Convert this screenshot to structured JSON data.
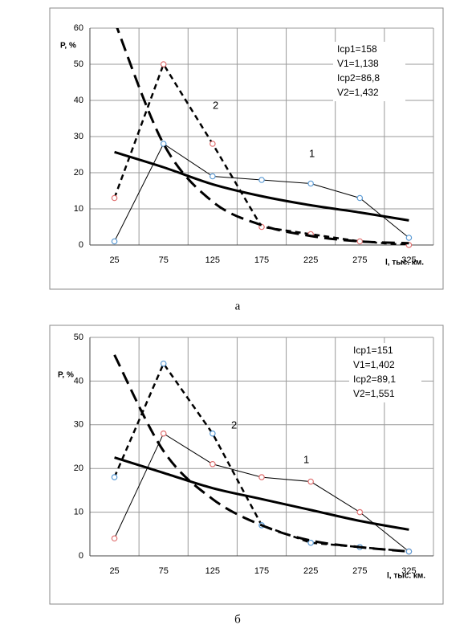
{
  "chart_data": [
    {
      "type": "line",
      "caption": "а",
      "ylabel": "P, %",
      "xlabel": "l, тыс. км.",
      "xlim": [
        0,
        350
      ],
      "xticks": [
        25,
        75,
        125,
        175,
        225,
        275,
        325
      ],
      "ylim": [
        0,
        60
      ],
      "yticks": [
        0,
        10,
        20,
        30,
        40,
        50,
        60
      ],
      "grid": true,
      "x": [
        25,
        75,
        125,
        175,
        225,
        275,
        325
      ],
      "series": [
        {
          "color": "#000000",
          "line_style": "solid",
          "line_width": 1,
          "marker_color": "#5b9bd5",
          "smooth": false,
          "values": [
            1,
            28,
            19,
            18,
            17,
            13,
            2
          ]
        },
        {
          "color": "#000000",
          "line_style": "dashed",
          "line_width": 2.5,
          "marker_color": "#e07070",
          "smooth": false,
          "values": [
            13,
            50,
            28,
            5,
            3,
            1,
            0
          ]
        },
        {
          "color": "#000000",
          "line_style": "solid",
          "line_width": 3,
          "smooth": true,
          "values": [
            25.7,
            21.5,
            16.8,
            13.5,
            11,
            9,
            6.8
          ]
        },
        {
          "color": "#000000",
          "line_style": "long-dash",
          "line_width": 3,
          "smooth": true,
          "values": [
            62,
            28,
            12,
            5.5,
            2.5,
            1,
            0.5
          ]
        }
      ],
      "annotations": [
        "1",
        "2"
      ],
      "text_box": [
        "Iср1=158",
        "V1=1,138",
        "Iср2=86,8",
        "V2=1,432"
      ]
    },
    {
      "type": "line",
      "caption": "б",
      "ylabel": "P, %",
      "xlabel": "l, тыс. км.",
      "xlim": [
        0,
        350
      ],
      "xticks": [
        25,
        75,
        125,
        175,
        225,
        275,
        325
      ],
      "ylim": [
        0,
        50
      ],
      "yticks": [
        0,
        10,
        20,
        30,
        40,
        50
      ],
      "grid": true,
      "x": [
        25,
        75,
        125,
        175,
        225,
        275,
        325
      ],
      "series": [
        {
          "color": "#000000",
          "line_style": "solid",
          "line_width": 1,
          "marker_color": "#e07070",
          "smooth": false,
          "values": [
            4,
            28,
            21,
            18,
            17,
            10,
            1
          ]
        },
        {
          "color": "#000000",
          "line_style": "dashed",
          "line_width": 2.5,
          "marker_color": "#5b9bd5",
          "smooth": false,
          "values": [
            18,
            44,
            28,
            7,
            3,
            2,
            1
          ]
        },
        {
          "color": "#000000",
          "line_style": "solid",
          "line_width": 3,
          "smooth": true,
          "values": [
            22.5,
            19,
            15.5,
            13,
            10.5,
            8,
            6
          ]
        },
        {
          "color": "#000000",
          "line_style": "long-dash",
          "line_width": 3,
          "smooth": true,
          "values": [
            46,
            24,
            13,
            7,
            3.5,
            2,
            1
          ]
        }
      ],
      "annotations": [
        "1",
        "2"
      ],
      "text_box": [
        "Iср1=151",
        "V1=1,402",
        "Iср2=89,1",
        "V2=1,551"
      ]
    }
  ]
}
